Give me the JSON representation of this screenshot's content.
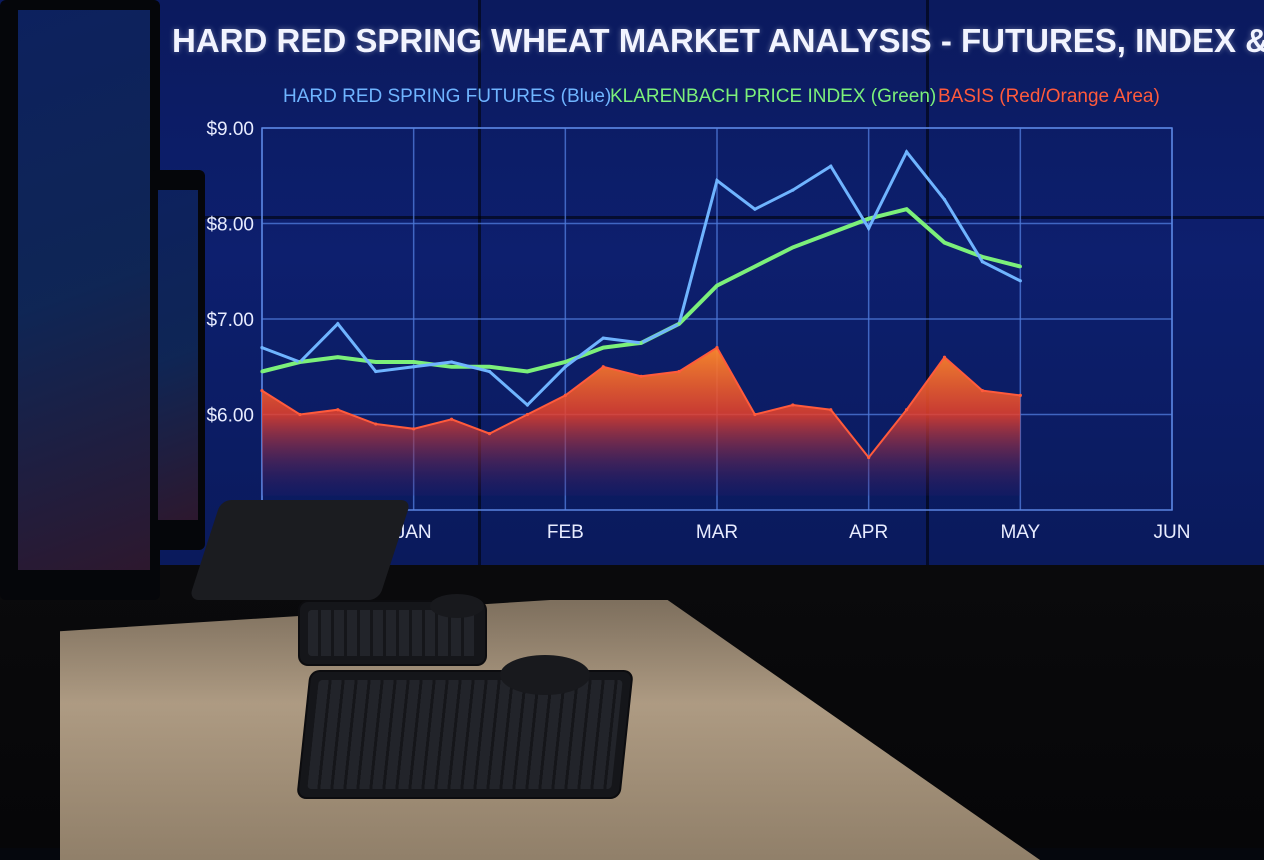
{
  "chart_data": {
    "type": "line",
    "title": "HARD RED SPRING WHEAT MARKET ANALYSIS - FUTURES, INDEX & BASIS",
    "legend": [
      {
        "label": "HARD RED SPRING FUTURES (Blue)",
        "color": "#6fb4ff"
      },
      {
        "label": "KLARENBACH PRICE INDEX (Green)",
        "color": "#7cf07a"
      },
      {
        "label": "BASIS (Red/Orange Area)",
        "color": "#ff5a3c"
      }
    ],
    "legend_position": "top",
    "y_ticks": [
      "$9.00",
      "$8.00",
      "$7.00",
      "$6.00"
    ],
    "x_ticks": [
      "JAN",
      "FEB",
      "MAR",
      "APR",
      "MAY",
      "JUN"
    ],
    "ylim": [
      5.0,
      9.0
    ],
    "grid": true,
    "x": [
      0,
      0.25,
      0.5,
      0.75,
      1.0,
      1.25,
      1.5,
      1.75,
      2.0,
      2.25,
      2.5,
      2.75,
      3.0,
      3.25,
      3.5,
      3.75,
      4.0,
      4.25,
      4.5,
      4.75,
      5.0
    ],
    "series": [
      {
        "name": "HARD RED SPRING FUTURES (Blue)",
        "values": [
          6.7,
          6.55,
          6.95,
          6.45,
          6.5,
          6.55,
          6.45,
          6.1,
          6.5,
          6.8,
          6.75,
          6.95,
          8.45,
          8.15,
          8.35,
          8.6,
          7.95,
          8.75,
          8.25,
          7.6,
          7.4
        ]
      },
      {
        "name": "KLARENBACH PRICE INDEX (Green)",
        "values": [
          6.45,
          6.55,
          6.6,
          6.55,
          6.55,
          6.5,
          6.5,
          6.45,
          6.55,
          6.7,
          6.75,
          6.95,
          7.35,
          7.55,
          7.75,
          7.9,
          8.05,
          8.15,
          7.8,
          7.65,
          7.55
        ]
      },
      {
        "name": "BASIS (Red/Orange Area)",
        "values": [
          6.25,
          6.0,
          6.05,
          5.9,
          5.85,
          5.95,
          5.8,
          6.0,
          6.2,
          6.5,
          6.4,
          6.45,
          6.7,
          6.0,
          6.1,
          6.05,
          5.55,
          6.05,
          6.6,
          6.25,
          6.2
        ]
      }
    ]
  }
}
